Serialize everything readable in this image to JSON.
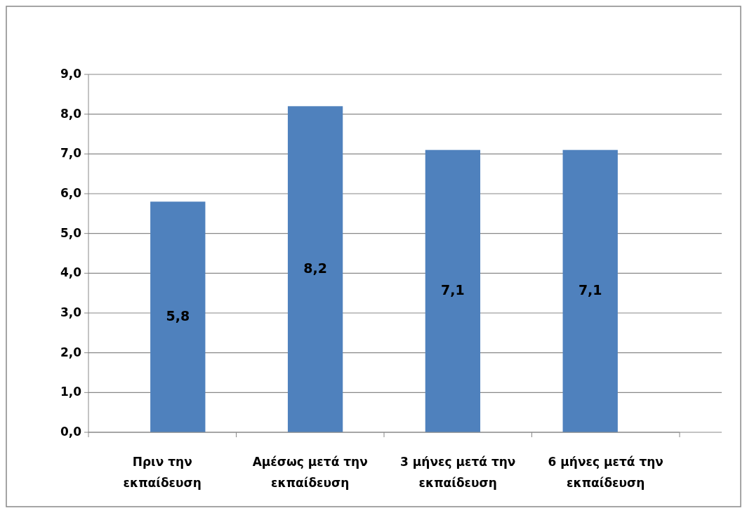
{
  "chart_data": {
    "type": "bar",
    "categories": [
      "Πριν την εκπαίδευση",
      "Αμέσως μετά την εκπαίδευση",
      "3 μήνες μετά την εκπαίδευση",
      "6 μήνες μετά την εκπαίδευση"
    ],
    "values": [
      5.8,
      8.2,
      7.1,
      7.1
    ],
    "value_labels": [
      "5,8",
      "8,2",
      "7,1",
      "7,1"
    ],
    "color": "#4f81bd",
    "ylim": [
      0,
      9
    ],
    "yticks": [
      {
        "value": 0,
        "label": "0,0"
      },
      {
        "value": 1,
        "label": "1,0"
      },
      {
        "value": 2,
        "label": "2,0"
      },
      {
        "value": 3,
        "label": "3,0"
      },
      {
        "value": 4,
        "label": "4,0"
      },
      {
        "value": 5,
        "label": "5,0"
      },
      {
        "value": 6,
        "label": "6,0"
      },
      {
        "value": 7,
        "label": "7,0"
      },
      {
        "value": 8,
        "label": "8,0"
      },
      {
        "value": 9,
        "label": "9,0"
      }
    ],
    "grid": "y"
  }
}
